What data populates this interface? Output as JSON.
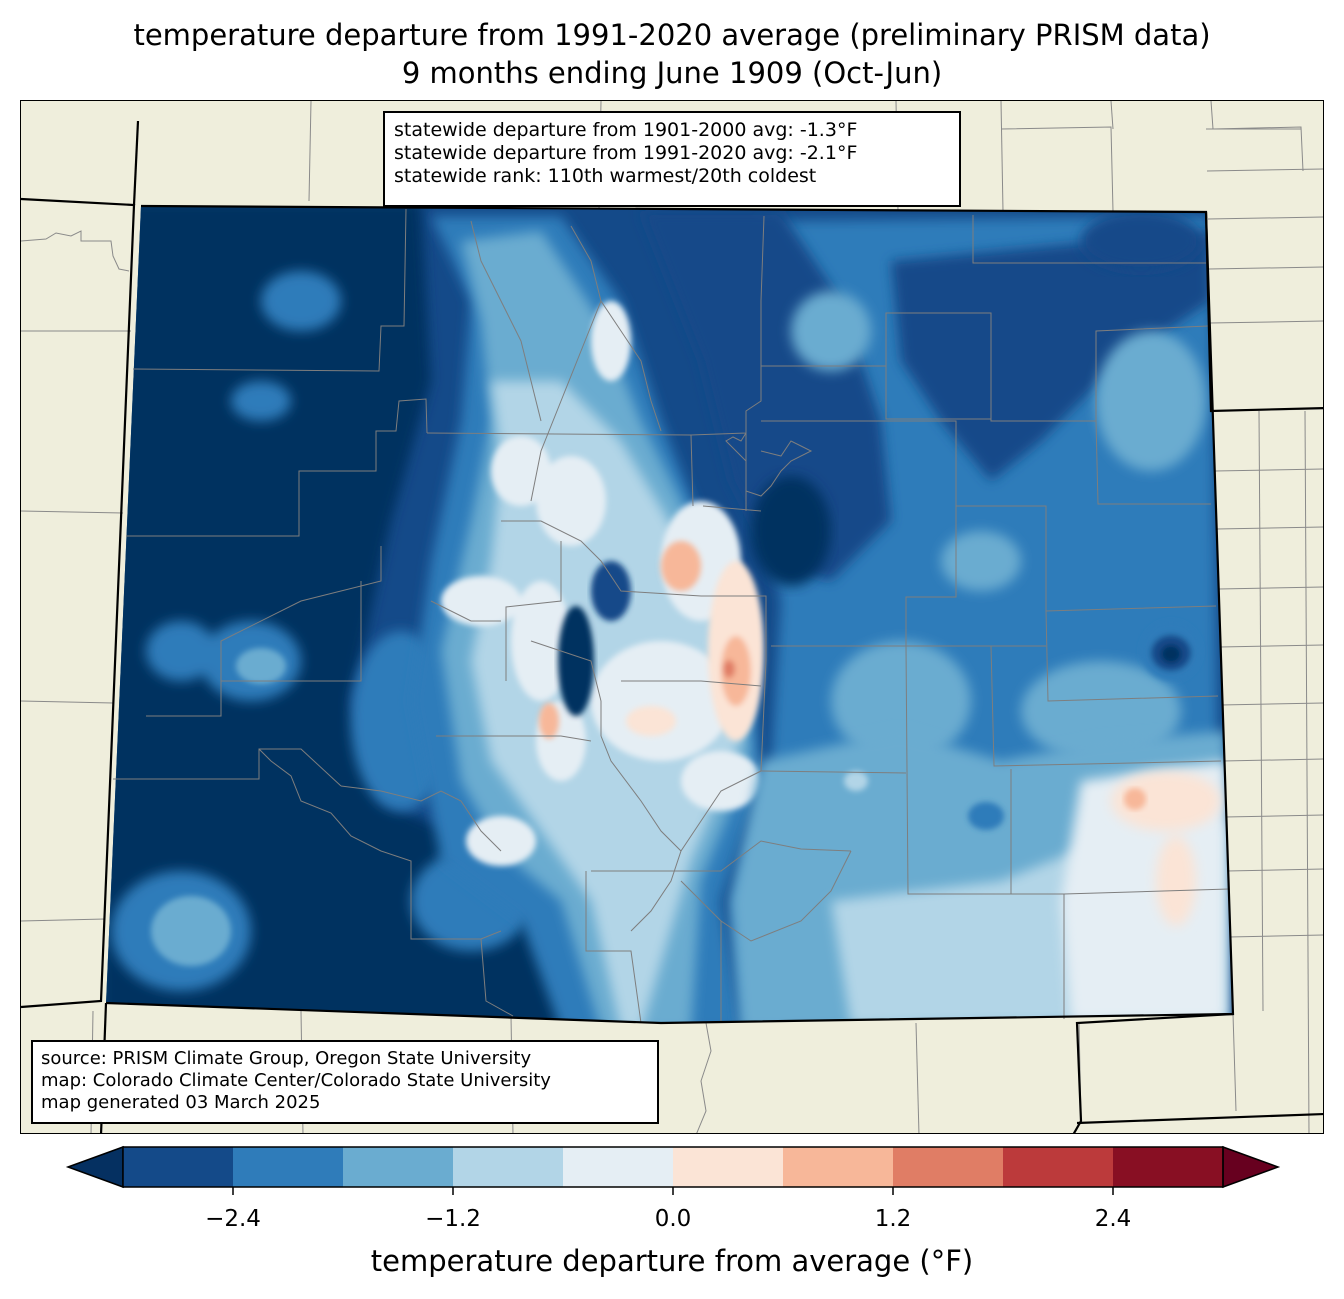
{
  "title": {
    "line1": "temperature departure from 1991-2020 average (preliminary PRISM data)",
    "line2": "9 months ending June 1909 (Oct-Jun)"
  },
  "stats_box": {
    "line1": "statewide departure from 1901-2000 avg: -1.3°F",
    "line2": "statewide departure from 1991-2020 avg: -2.1°F",
    "line3": "statewide rank: 110th warmest/20th coldest"
  },
  "source_box": {
    "line1": "source: PRISM Climate Group, Oregon State University",
    "line2": "map: Colorado Climate Center/Colorado State University",
    "line3": "map generated 03 March 2025"
  },
  "colorbar": {
    "label": "temperature departure from average (°F)",
    "ticks": [
      "−2.4",
      "−1.2",
      "0.0",
      "1.2",
      "2.4"
    ],
    "bins": [
      -3.0,
      -2.4,
      -1.8,
      -1.2,
      -0.6,
      0.0,
      0.6,
      1.2,
      1.8,
      2.4,
      3.0
    ],
    "colors": {
      "under": "#053061",
      "b0": "#144a89",
      "b1": "#2f7cba",
      "b2": "#6aacd0",
      "b3": "#b2d5e7",
      "b4": "#e5eef4",
      "b5": "#fbe4d6",
      "b6": "#f7b799",
      "b7": "#e07d65",
      "b8": "#bc3a3b",
      "b9": "#880f23",
      "over": "#67001f"
    }
  },
  "map_colors": {
    "land": "#efeedc",
    "county_lines": "#8a8a8a",
    "state_lines": "#000000"
  }
}
